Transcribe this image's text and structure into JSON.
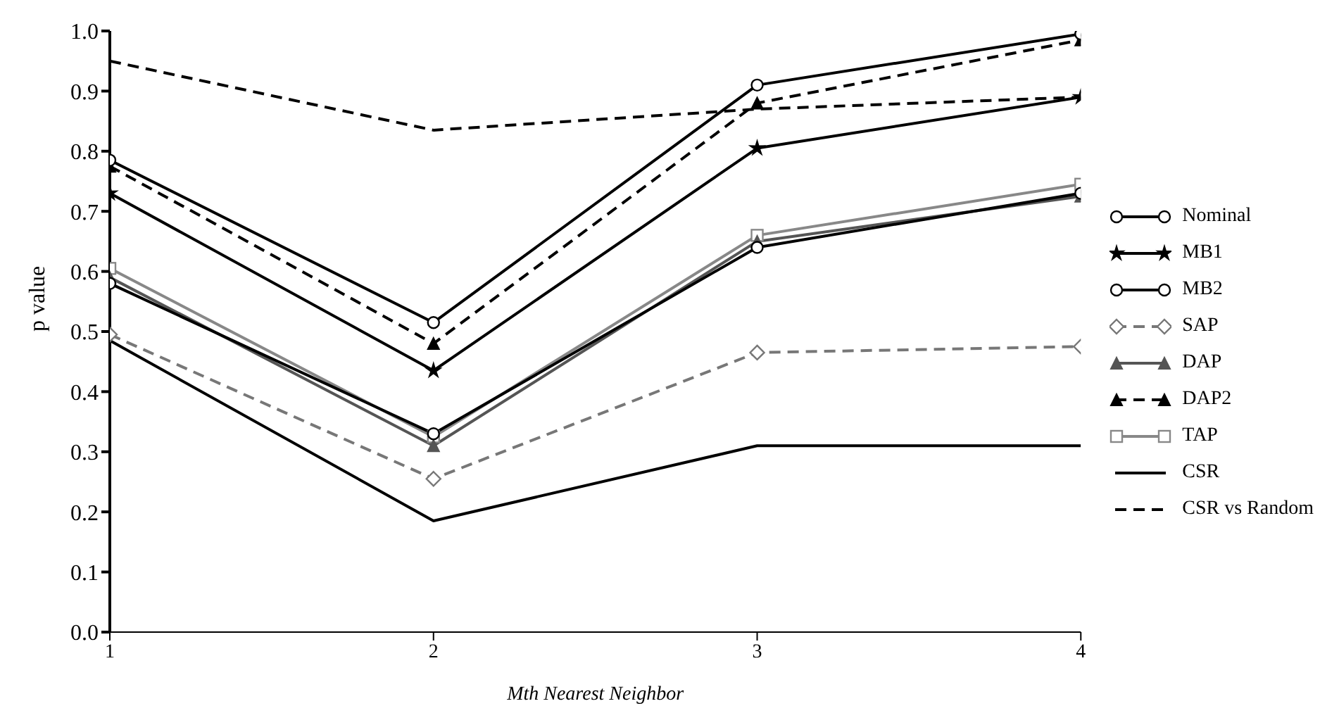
{
  "chart_data": {
    "type": "line",
    "xlabel": "Mth Nearest Neighbor",
    "ylabel": "p value",
    "x": [
      1,
      2,
      3,
      4
    ],
    "xlim": [
      1,
      4
    ],
    "xticks": [
      1,
      2,
      3,
      4
    ],
    "ylim": [
      0,
      1
    ],
    "yticks": [
      {
        "value": 0,
        "label": "0.0"
      },
      0.1,
      0.2,
      0.3,
      0.4,
      0.5,
      0.6,
      0.7,
      0.8,
      0.9,
      {
        "value": 1,
        "label": "1.0"
      }
    ],
    "legend": "right",
    "series": [
      {
        "name": "Nominal",
        "color": "#000000",
        "marker": "circle",
        "line_style": "solid",
        "values": [
          0.58,
          0.33,
          0.64,
          0.73
        ]
      },
      {
        "name": "MB1",
        "color": "#000000",
        "marker": "star",
        "line_style": "solid",
        "values": [
          0.73,
          0.435,
          0.805,
          0.89
        ]
      },
      {
        "name": "MB2",
        "color": "#000000",
        "marker": "circle",
        "line_style": "solid",
        "values": [
          0.785,
          0.515,
          0.91,
          0.995
        ]
      },
      {
        "name": "SAP",
        "color": "#777777",
        "marker": "diamond",
        "line_style": "dashed",
        "values": [
          0.495,
          0.255,
          0.465,
          0.475
        ]
      },
      {
        "name": "DAP",
        "color": "#555555",
        "marker": "triangle",
        "line_style": "solid",
        "values": [
          0.59,
          0.31,
          0.65,
          0.725
        ]
      },
      {
        "name": "DAP2",
        "color": "#000000",
        "marker": "triangle",
        "line_style": "dashed",
        "values": [
          0.775,
          0.48,
          0.88,
          0.985
        ]
      },
      {
        "name": "TAP",
        "color": "#888888",
        "marker": "square",
        "line_style": "solid",
        "values": [
          0.605,
          0.325,
          0.66,
          0.745
        ]
      },
      {
        "name": "CSR",
        "color": "#000000",
        "marker": "none",
        "line_style": "solid",
        "values": [
          0.485,
          0.185,
          0.31,
          0.31
        ]
      },
      {
        "name": "CSR vs Random",
        "color": "#000000",
        "marker": "none",
        "line_style": "dashed",
        "values": [
          0.95,
          0.835,
          0.87,
          0.89
        ]
      }
    ]
  }
}
